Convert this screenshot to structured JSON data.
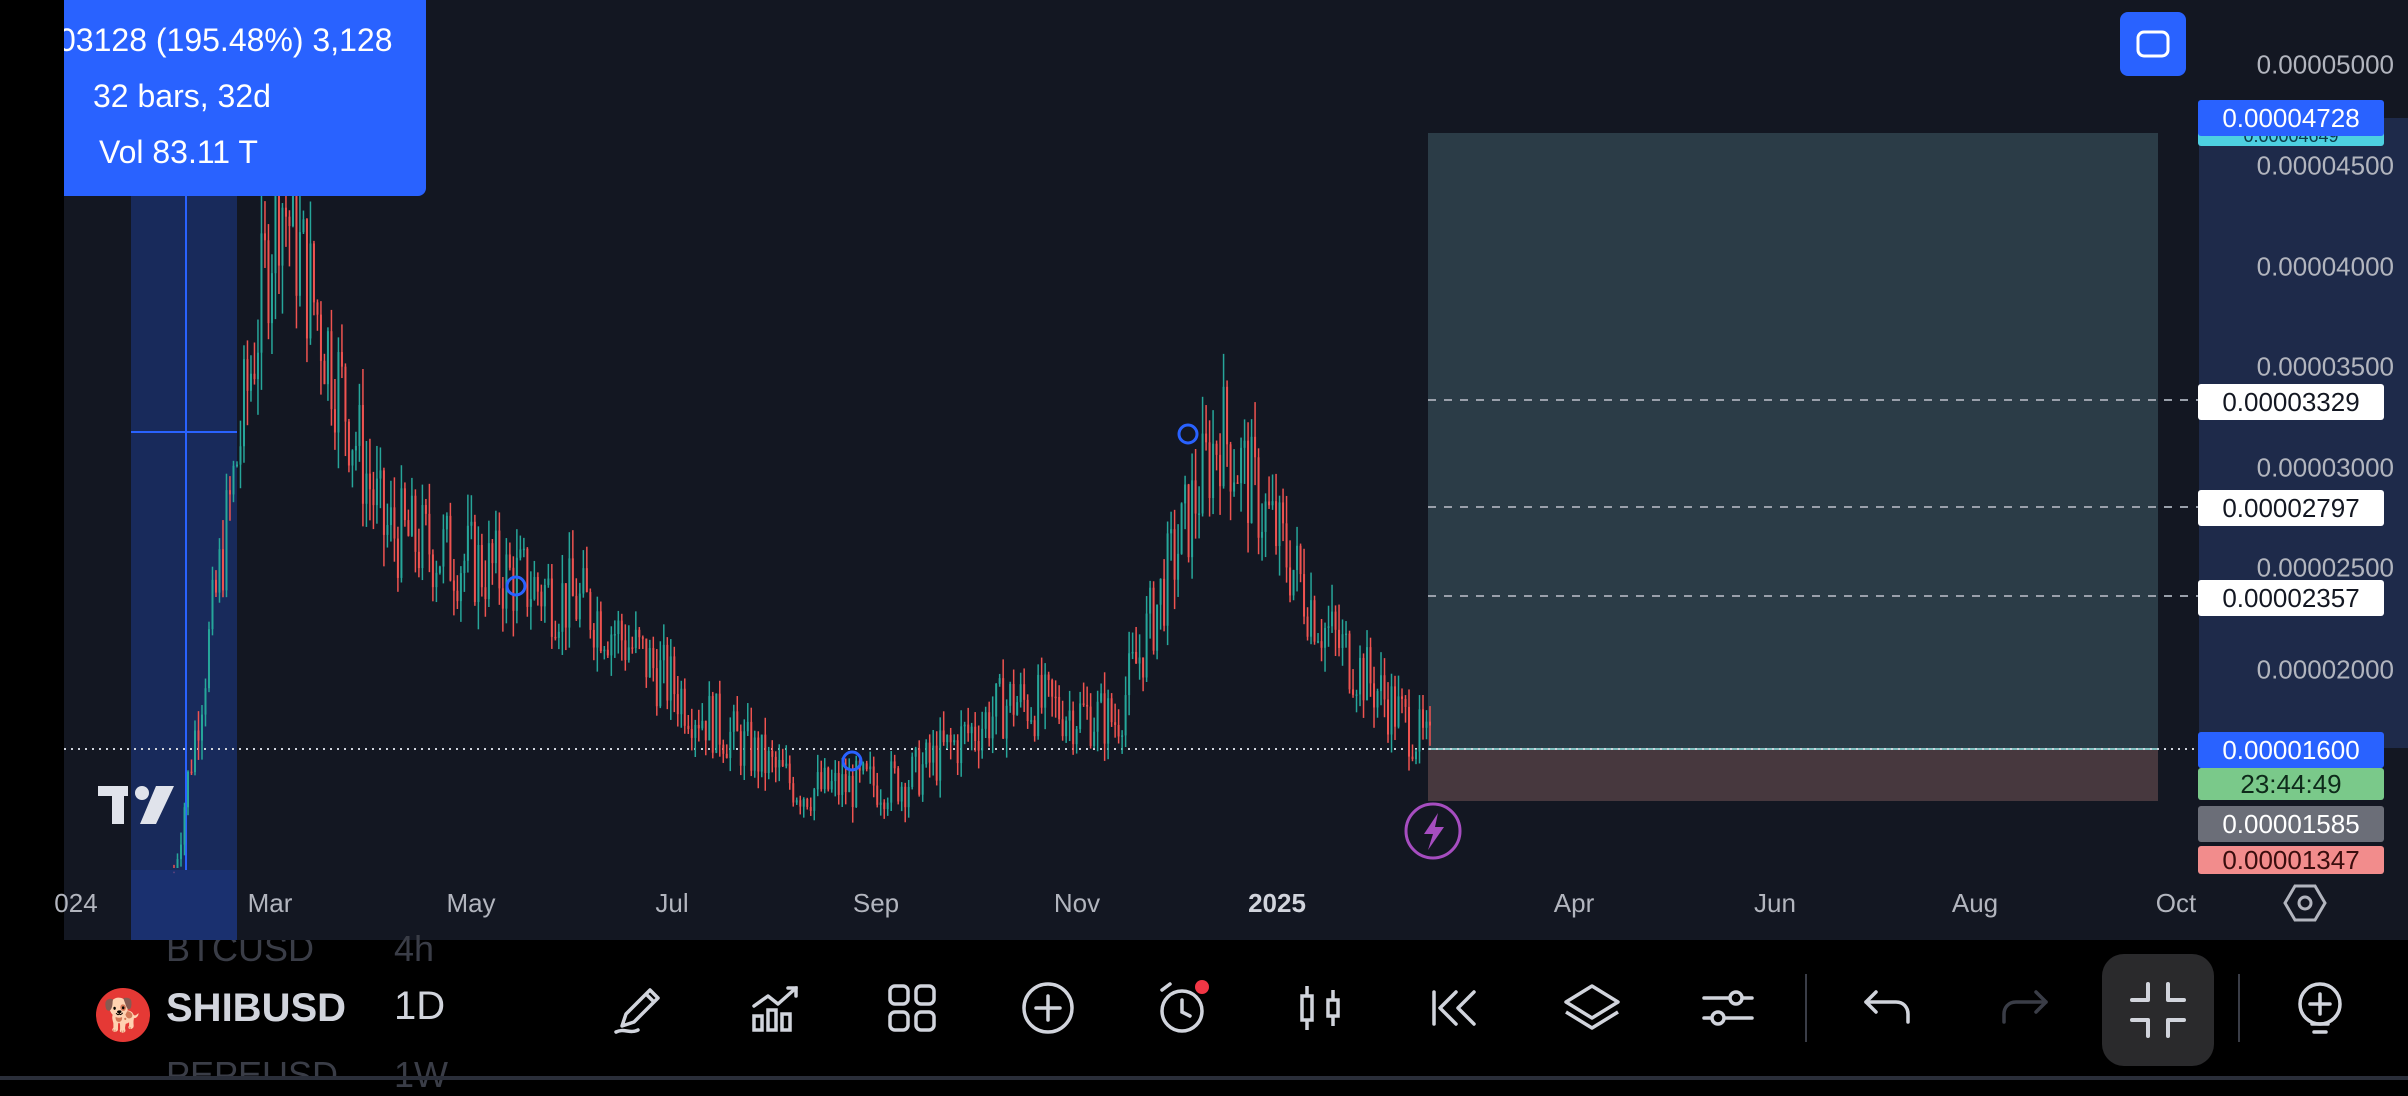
{
  "tooltip": {
    "change": "03128 (195.48%) 3,128",
    "bars": "32 bars, 32d",
    "volume": "Vol 83.11 T"
  },
  "price_axis": {
    "ticks": [
      "0.00005000",
      "0.00004500",
      "0.00004000",
      "0.00003500",
      "0.00003000",
      "0.00002500",
      "0.00002000"
    ],
    "tags": {
      "top": "0.00004728",
      "top_sub": "0.00004649",
      "line1": "0.00003329",
      "line2": "0.00002797",
      "line3": "0.00002357",
      "current": "0.00001600",
      "countdown": "23:44:49",
      "gray": "0.00001585",
      "pink": "0.00001347"
    }
  },
  "time_axis": {
    "labels": [
      "024",
      "Mar",
      "May",
      "Jul",
      "Sep",
      "Nov",
      "2025",
      "Apr",
      "Jun",
      "Aug",
      "Oct"
    ]
  },
  "toolbar": {
    "symbol": "SHIBUSD",
    "symbol_above": "BTCUSD",
    "symbol_below": "PEPEUSD",
    "interval": "1D",
    "interval_above": "4h",
    "interval_below": "1W"
  },
  "colors": {
    "background": "#131722",
    "accent": "#2962ff",
    "up_candle": "#26a69a",
    "down_candle": "#ef5350",
    "target_zone": "#2c3e4a",
    "stop_zone": "#4a3a40"
  },
  "chart_data": {
    "type": "candlestick",
    "symbol": "SHIBUSD",
    "interval": "1D",
    "x_ticks": [
      "024",
      "Mar",
      "May",
      "Jul",
      "Sep",
      "Nov",
      "2025",
      "Apr",
      "Jun",
      "Aug",
      "Oct"
    ],
    "ylim": [
      1.25e-05,
      5.15e-05
    ],
    "approx_close_path": [
      [
        "Feb",
        1e-05
      ],
      [
        "Mar",
        4.4e-05
      ],
      [
        "Apr",
        2.7e-05
      ],
      [
        "May",
        2.5e-05
      ],
      [
        "Jun",
        2.3e-05
      ],
      [
        "Jul",
        1.8e-05
      ],
      [
        "Aug",
        1.4e-05
      ],
      [
        "Sep",
        1.45e-05
      ],
      [
        "Oct",
        1.85e-05
      ],
      [
        "Nov",
        1.75e-05
      ],
      [
        "Dec",
        3.2e-05
      ],
      [
        "2025",
        2.2e-05
      ],
      [
        "Feb",
        1.6e-05
      ]
    ],
    "current_price": 1.6e-05,
    "position": {
      "entry": 1.6e-05,
      "target": 4.728e-05,
      "stop": 1.347e-05
    },
    "horizontal_lines": [
      3.329e-05,
      2.797e-05,
      2.357e-05
    ]
  }
}
